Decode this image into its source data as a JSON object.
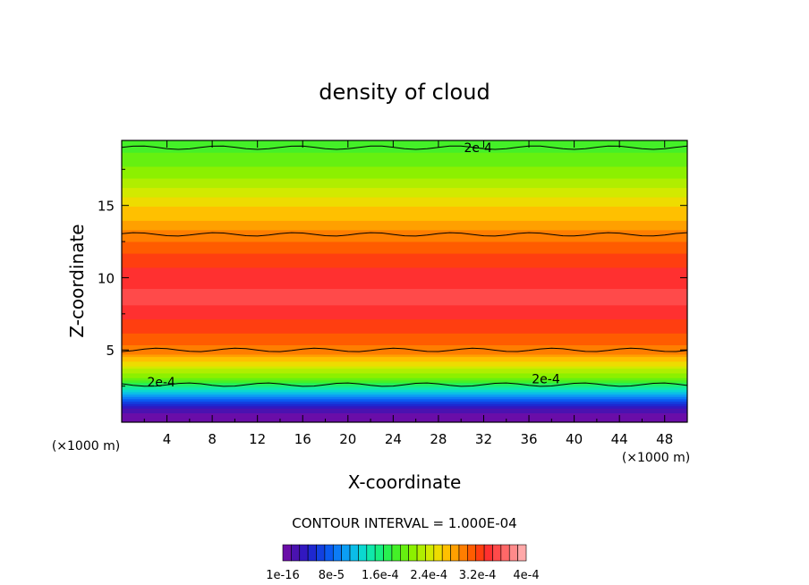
{
  "chart_data": {
    "type": "heatmap",
    "title": "density of cloud",
    "xlabel": "X-coordinate",
    "ylabel": "Z-coordinate",
    "x_units": "(×1000 m)",
    "y_units": "(×1000 m)",
    "xlim": [
      0,
      50
    ],
    "ylim": [
      0,
      19.5
    ],
    "x_ticks": [
      "4",
      "8",
      "12",
      "16",
      "20",
      "24",
      "28",
      "32",
      "36",
      "40",
      "44",
      "48"
    ],
    "y_ticks": [
      "5",
      "10",
      "15"
    ],
    "contour_interval_text": "CONTOUR INTERVAL = 1.000E-04",
    "contour_labels": [
      "2e-4",
      "2e-4",
      "2e-4"
    ],
    "colorbar_labels": [
      "1e-16",
      "8e-5",
      "1.6e-4",
      "2.4e-4",
      "3.2e-4",
      "4e-4"
    ],
    "color_range": [
      0,
      0.0004
    ],
    "vertical_profile": [
      {
        "z": 0.3,
        "value": 8e-06
      },
      {
        "z": 0.9,
        "value": 2e-05
      },
      {
        "z": 1.4,
        "value": 6e-05
      },
      {
        "z": 2.0,
        "value": 0.00011
      },
      {
        "z": 2.6,
        "value": 0.00016
      },
      {
        "z": 3.2,
        "value": 0.00021
      },
      {
        "z": 4.0,
        "value": 0.00025
      },
      {
        "z": 4.8,
        "value": 0.00029
      },
      {
        "z": 5.6,
        "value": 0.00031
      },
      {
        "z": 7.0,
        "value": 0.00033
      },
      {
        "z": 8.5,
        "value": 0.00035
      },
      {
        "z": 10.0,
        "value": 0.00034
      },
      {
        "z": 11.5,
        "value": 0.00032
      },
      {
        "z": 12.8,
        "value": 0.0003
      },
      {
        "z": 13.8,
        "value": 0.00028
      },
      {
        "z": 15.0,
        "value": 0.00026
      },
      {
        "z": 16.0,
        "value": 0.00024
      },
      {
        "z": 17.0,
        "value": 0.00022
      },
      {
        "z": 18.2,
        "value": 0.0002
      },
      {
        "z": 19.5,
        "value": 0.00018
      }
    ],
    "palette": [
      "#6a0da8",
      "#4a12b0",
      "#3218c0",
      "#1e28d0",
      "#1240e0",
      "#0a5af0",
      "#0c7cf6",
      "#0c9ef4",
      "#0bbde8",
      "#0bd8d0",
      "#10e8aa",
      "#18ee80",
      "#28f050",
      "#44f028",
      "#66f010",
      "#8cf000",
      "#b0ee00",
      "#d2ea00",
      "#eedc00",
      "#ffc000",
      "#ffa000",
      "#ff7e00",
      "#ff5c00",
      "#ff3e10",
      "#ff3030",
      "#ff4a4a",
      "#ff6868",
      "#ff8a8a",
      "#ffa8a8"
    ]
  }
}
